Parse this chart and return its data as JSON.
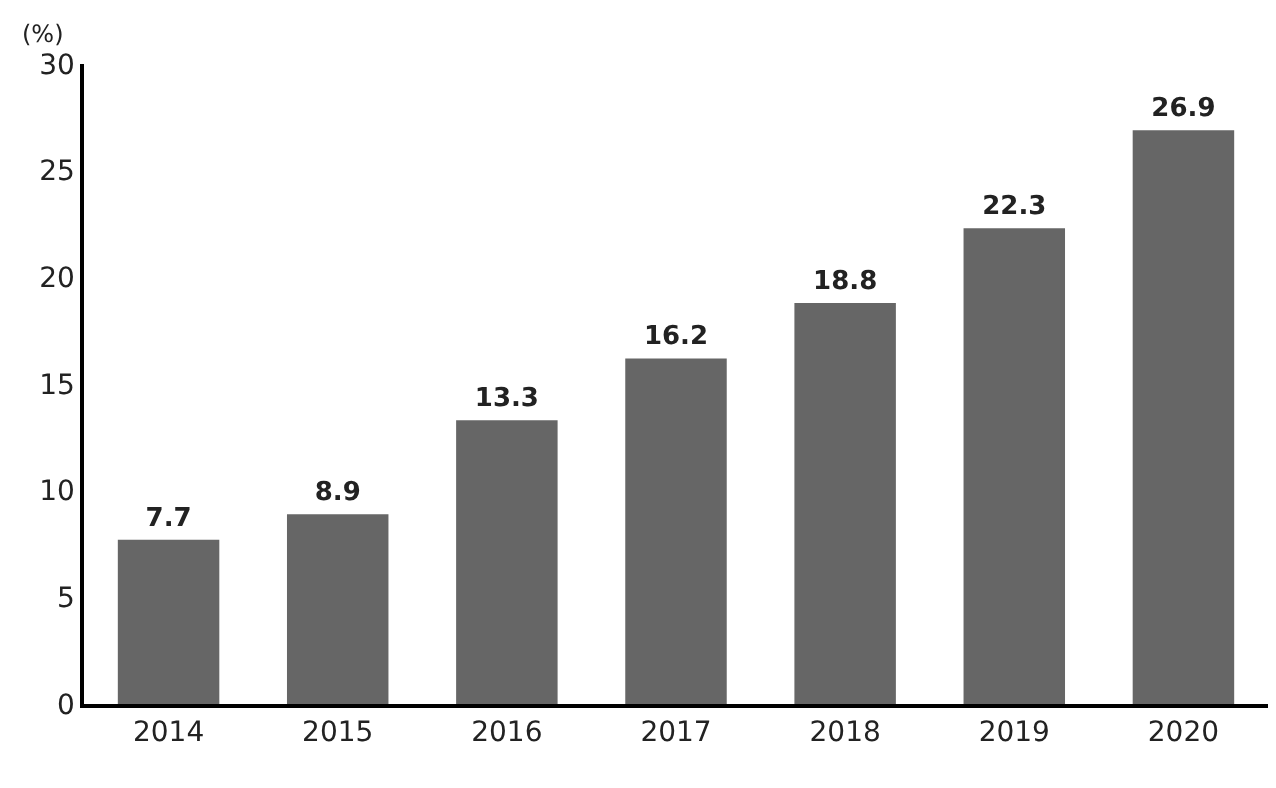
{
  "chart_data": {
    "type": "bar",
    "ylabel": "(%)",
    "categories": [
      "2014",
      "2015",
      "2016",
      "2017",
      "2018",
      "2019",
      "2020"
    ],
    "values": [
      7.7,
      8.9,
      13.3,
      16.2,
      18.8,
      22.3,
      26.9
    ],
    "color": "#666666",
    "data_labels": true,
    "ylim": [
      0,
      30
    ],
    "yticks": [
      0,
      5,
      10,
      15,
      20,
      25,
      30
    ]
  }
}
